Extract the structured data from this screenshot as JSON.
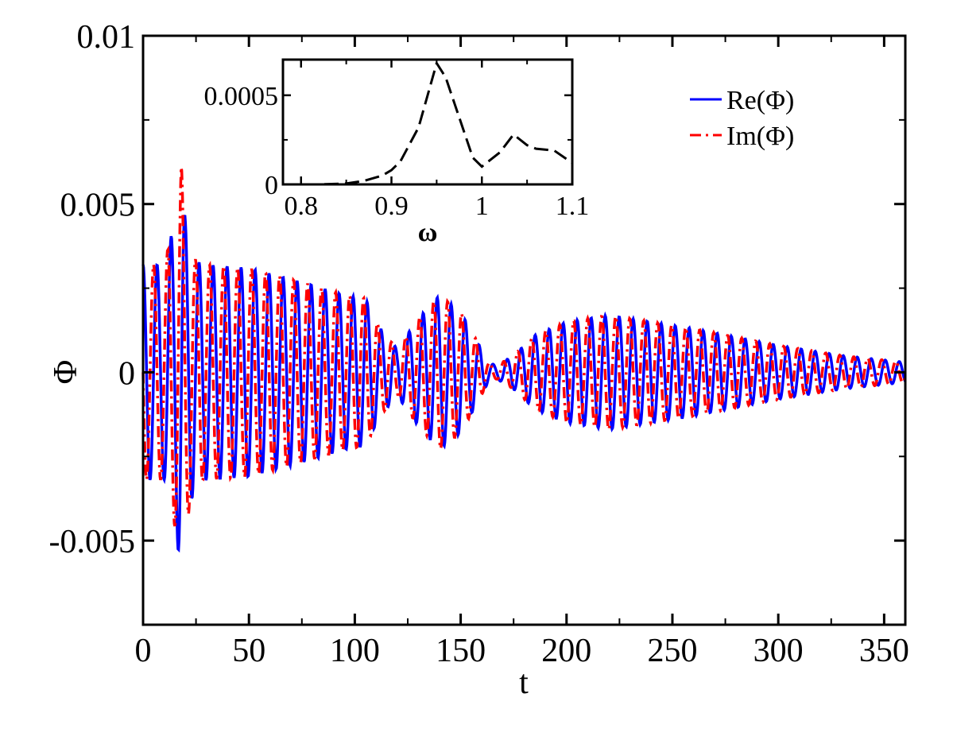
{
  "chart_data": [
    {
      "type": "line",
      "title": "",
      "xlabel": "t",
      "ylabel": "Φ",
      "xlim": [
        0,
        360
      ],
      "ylim": [
        -0.0075,
        0.01
      ],
      "x_ticks": [
        0,
        50,
        100,
        150,
        200,
        250,
        300,
        350
      ],
      "x_tick_labels": [
        "0",
        "50",
        "100",
        "150",
        "200",
        "250",
        "300",
        "350"
      ],
      "y_ticks": [
        -0.005,
        0,
        0.005,
        0.01
      ],
      "y_tick_labels": [
        "-0.005",
        "0",
        "0.005",
        "0.01"
      ],
      "grid": false,
      "legend_position": "top-right",
      "series": [
        {
          "name": "Re(Φ)",
          "color": "#0000ff",
          "style": "solid",
          "envelope": {
            "t": [
              0,
              10,
              15,
              18,
              20,
              25,
              30,
              50,
              80,
              95,
              105,
              112,
              120,
              130,
              140,
              150,
              158,
              163,
              167,
              175,
              185,
              200,
              220,
              240,
              260,
              300,
              330,
              360
            ],
            "amplitude": [
              0.0032,
              0.0032,
              0.0045,
              0.006,
              0.0045,
              0.0033,
              0.0032,
              0.0031,
              0.0026,
              0.0023,
              0.0022,
              0.0013,
              0.0007,
              0.0016,
              0.0023,
              0.0018,
              0.0009,
              0.0003,
              0.0002,
              0.0005,
              0.0011,
              0.0015,
              0.0017,
              0.0015,
              0.0013,
              0.0008,
              0.0005,
              0.0003
            ]
          },
          "omega": 0.95,
          "phase": 0
        },
        {
          "name": "Im(Φ)",
          "color": "#ff0000",
          "style": "dashed",
          "envelope": {
            "t": [
              0,
              10,
              15,
              18,
              20,
              25,
              30,
              50,
              80,
              95,
              105,
              112,
              120,
              130,
              140,
              150,
              158,
              163,
              167,
              175,
              185,
              200,
              220,
              240,
              260,
              300,
              330,
              360
            ],
            "amplitude": [
              0.0032,
              0.0032,
              0.0046,
              0.0062,
              0.0046,
              0.0033,
              0.0032,
              0.0031,
              0.0026,
              0.0023,
              0.0022,
              0.0013,
              0.0007,
              0.0016,
              0.0023,
              0.0018,
              0.0009,
              0.0003,
              0.0002,
              0.0005,
              0.0011,
              0.0015,
              0.0017,
              0.0015,
              0.0013,
              0.0008,
              0.0005,
              0.0003
            ]
          },
          "omega": 0.95,
          "phase": 1.5708
        }
      ]
    },
    {
      "type": "line",
      "title": "",
      "xlabel": "ω",
      "ylabel": "",
      "xlim": [
        0.78,
        1.1
      ],
      "ylim": [
        0,
        0.0007
      ],
      "x_ticks": [
        0.8,
        0.9,
        1.0,
        1.1
      ],
      "x_tick_labels": [
        "0.8",
        "0.9",
        "1",
        "1.1"
      ],
      "y_ticks": [
        0,
        0.0005
      ],
      "y_tick_labels": [
        "0",
        "0.0005"
      ],
      "grid": false,
      "series": [
        {
          "color": "#000000",
          "style": "dashed",
          "x": [
            0.78,
            0.8,
            0.82,
            0.85,
            0.87,
            0.89,
            0.9,
            0.91,
            0.93,
            0.94,
            0.95,
            0.96,
            0.97,
            0.98,
            0.99,
            1.0,
            1.02,
            1.035,
            1.05,
            1.06,
            1.08,
            1.1
          ],
          "y": [
            0.0,
            0.0,
            0.0,
            5e-06,
            2e-05,
            5e-05,
            8e-05,
            0.00013,
            0.00032,
            0.0005,
            0.00068,
            0.0006,
            0.00045,
            0.0003,
            0.00015,
            0.0001,
            0.00018,
            0.00028,
            0.00022,
            0.0002,
            0.00019,
            0.00012
          ]
        }
      ]
    }
  ],
  "legend": {
    "items": [
      {
        "label": "Re(Φ)",
        "color": "#0000ff",
        "style": "solid"
      },
      {
        "label": "Im(Φ)",
        "color": "#ff0000",
        "style": "dashed"
      }
    ]
  }
}
